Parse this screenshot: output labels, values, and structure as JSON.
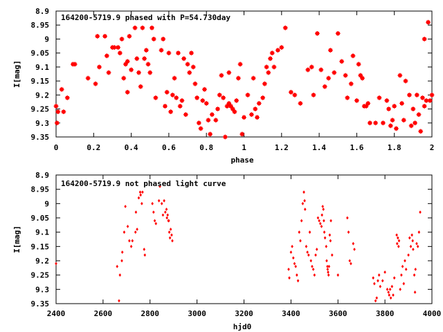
{
  "chart_data": [
    {
      "type": "scatter",
      "title": "164200-5719.9 phased with P=54.730day",
      "xlabel": "phase",
      "ylabel": "I[mag]",
      "xlim": [
        0,
        2
      ],
      "ylim": [
        9.35,
        8.9
      ],
      "y_inverted": true,
      "x_ticks": [
        0,
        0.2,
        0.4,
        0.6,
        0.8,
        1,
        1.2,
        1.4,
        1.6,
        1.8,
        2
      ],
      "x_tick_labels": [
        "0",
        "0.2",
        "0.4",
        "0.6",
        "0.8",
        "1",
        "1.2",
        "1.4",
        "1.6",
        "1.8",
        "2"
      ],
      "y_ticks": [
        8.9,
        8.95,
        9.0,
        9.05,
        9.1,
        9.15,
        9.2,
        9.25,
        9.3,
        9.35
      ],
      "y_tick_labels": [
        "8.9",
        "8.95",
        "9",
        "9.05",
        "9.1",
        "9.15",
        "9.2",
        "9.25",
        "9.3",
        "9.35"
      ],
      "marker_color": "#ff0000",
      "marker": "filled-star",
      "points": [
        [
          0.0,
          9.24
        ],
        [
          0.005,
          9.3
        ],
        [
          0.01,
          9.26
        ],
        [
          0.03,
          9.18
        ],
        [
          0.04,
          9.26
        ],
        [
          0.06,
          9.21
        ],
        [
          0.09,
          9.09
        ],
        [
          0.1,
          9.09
        ],
        [
          0.17,
          9.14
        ],
        [
          0.21,
          9.16
        ],
        [
          0.22,
          8.99
        ],
        [
          0.23,
          9.1
        ],
        [
          0.26,
          8.99
        ],
        [
          0.27,
          9.06
        ],
        [
          0.28,
          9.12
        ],
        [
          0.3,
          9.03
        ],
        [
          0.31,
          9.03
        ],
        [
          0.33,
          9.03
        ],
        [
          0.34,
          9.05
        ],
        [
          0.35,
          9.0
        ],
        [
          0.36,
          9.14
        ],
        [
          0.37,
          9.09
        ],
        [
          0.38,
          9.08
        ],
        [
          0.38,
          9.19
        ],
        [
          0.39,
          8.99
        ],
        [
          0.4,
          9.11
        ],
        [
          0.42,
          8.96
        ],
        [
          0.43,
          9.07
        ],
        [
          0.44,
          9.12
        ],
        [
          0.45,
          9.17
        ],
        [
          0.46,
          8.96
        ],
        [
          0.47,
          9.07
        ],
        [
          0.48,
          9.04
        ],
        [
          0.49,
          9.09
        ],
        [
          0.5,
          9.12
        ],
        [
          0.51,
          8.96
        ],
        [
          0.52,
          9.0
        ],
        [
          0.53,
          9.21
        ],
        [
          0.56,
          9.04
        ],
        [
          0.57,
          9.0
        ],
        [
          0.58,
          9.24
        ],
        [
          0.59,
          9.19
        ],
        [
          0.6,
          9.05
        ],
        [
          0.61,
          9.26
        ],
        [
          0.62,
          9.2
        ],
        [
          0.63,
          9.14
        ],
        [
          0.64,
          9.21
        ],
        [
          0.65,
          9.05
        ],
        [
          0.66,
          9.24
        ],
        [
          0.67,
          9.22
        ],
        [
          0.68,
          9.07
        ],
        [
          0.69,
          9.27
        ],
        [
          0.7,
          9.09
        ],
        [
          0.71,
          9.12
        ],
        [
          0.72,
          9.05
        ],
        [
          0.73,
          9.1
        ],
        [
          0.74,
          9.16
        ],
        [
          0.75,
          9.21
        ],
        [
          0.76,
          9.3
        ],
        [
          0.77,
          9.32
        ],
        [
          0.78,
          9.22
        ],
        [
          0.79,
          9.18
        ],
        [
          0.8,
          9.23
        ],
        [
          0.81,
          9.29
        ],
        [
          0.82,
          9.34
        ],
        [
          0.83,
          9.27
        ],
        [
          0.85,
          9.29
        ],
        [
          0.86,
          9.25
        ],
        [
          0.87,
          9.2
        ],
        [
          0.88,
          9.13
        ],
        [
          0.89,
          9.21
        ],
        [
          0.9,
          9.35
        ],
        [
          0.91,
          9.24
        ],
        [
          0.92,
          9.12
        ],
        [
          0.92,
          9.23
        ],
        [
          0.93,
          9.24
        ],
        [
          0.94,
          9.25
        ],
        [
          0.95,
          9.26
        ],
        [
          0.96,
          9.22
        ],
        [
          0.97,
          9.14
        ],
        [
          0.98,
          9.09
        ],
        [
          0.99,
          9.34
        ],
        [
          1.0,
          9.28
        ],
        [
          1.02,
          9.2
        ],
        [
          1.04,
          9.27
        ],
        [
          1.05,
          9.14
        ],
        [
          1.06,
          9.25
        ],
        [
          1.07,
          9.28
        ],
        [
          1.08,
          9.23
        ],
        [
          1.1,
          9.21
        ],
        [
          1.11,
          9.16
        ],
        [
          1.12,
          9.1
        ],
        [
          1.13,
          9.12
        ],
        [
          1.14,
          9.07
        ],
        [
          1.15,
          9.05
        ],
        [
          1.16,
          9.1
        ],
        [
          1.18,
          9.04
        ],
        [
          1.2,
          9.03
        ],
        [
          1.22,
          8.96
        ],
        [
          1.25,
          9.19
        ],
        [
          1.27,
          9.2
        ],
        [
          1.3,
          9.23
        ],
        [
          1.34,
          9.11
        ],
        [
          1.36,
          9.1
        ],
        [
          1.37,
          9.2
        ],
        [
          1.39,
          8.98
        ],
        [
          1.41,
          9.11
        ],
        [
          1.43,
          9.17
        ],
        [
          1.45,
          9.14
        ],
        [
          1.46,
          9.04
        ],
        [
          1.48,
          9.12
        ],
        [
          1.5,
          8.98
        ],
        [
          1.52,
          9.08
        ],
        [
          1.54,
          9.13
        ],
        [
          1.55,
          9.21
        ],
        [
          1.57,
          9.16
        ],
        [
          1.58,
          9.06
        ],
        [
          1.6,
          9.22
        ],
        [
          1.61,
          9.09
        ],
        [
          1.62,
          9.13
        ],
        [
          1.63,
          9.14
        ],
        [
          1.64,
          9.24
        ],
        [
          1.65,
          9.24
        ],
        [
          1.66,
          9.23
        ],
        [
          1.67,
          9.3
        ],
        [
          1.7,
          9.3
        ],
        [
          1.72,
          9.21
        ],
        [
          1.74,
          9.3
        ],
        [
          1.76,
          9.22
        ],
        [
          1.77,
          9.25
        ],
        [
          1.78,
          9.31
        ],
        [
          1.79,
          9.29
        ],
        [
          1.8,
          9.24
        ],
        [
          1.81,
          9.32
        ],
        [
          1.83,
          9.13
        ],
        [
          1.84,
          9.23
        ],
        [
          1.85,
          9.29
        ],
        [
          1.86,
          9.15
        ],
        [
          1.88,
          9.2
        ],
        [
          1.89,
          9.31
        ],
        [
          1.9,
          9.25
        ],
        [
          1.91,
          9.3
        ],
        [
          1.92,
          9.2
        ],
        [
          1.93,
          9.27
        ],
        [
          1.94,
          9.33
        ],
        [
          1.95,
          9.21
        ],
        [
          1.96,
          9.24
        ],
        [
          1.96,
          9.0
        ],
        [
          1.97,
          9.22
        ],
        [
          1.98,
          8.94
        ],
        [
          1.99,
          9.22
        ],
        [
          2.0,
          9.2
        ]
      ]
    },
    {
      "type": "scatter",
      "title": "164200-5719.9 not phased light curve",
      "xlabel": "hjd0",
      "ylabel": "I[mag]",
      "xlim": [
        2400,
        4000
      ],
      "ylim": [
        9.35,
        8.9
      ],
      "y_inverted": true,
      "x_ticks": [
        2400,
        2600,
        2800,
        3000,
        3200,
        3400,
        3600,
        3800,
        4000
      ],
      "x_tick_labels": [
        "2400",
        "2600",
        "2800",
        "3000",
        "3200",
        "3400",
        "3600",
        "3800",
        "4000"
      ],
      "y_ticks": [
        8.9,
        8.95,
        9.0,
        9.05,
        9.1,
        9.15,
        9.2,
        9.25,
        9.3,
        9.35
      ],
      "y_tick_labels": [
        "8.9",
        "8.95",
        "9",
        "9.05",
        "9.1",
        "9.15",
        "9.2",
        "9.25",
        "9.3",
        "9.35"
      ],
      "marker_color": "#ff0000",
      "marker": "filled-diamond",
      "points": [
        [
          2400,
          9.21
        ],
        [
          2660,
          9.22
        ],
        [
          2668,
          9.34
        ],
        [
          2672,
          9.25
        ],
        [
          2680,
          9.2
        ],
        [
          2682,
          9.17
        ],
        [
          2690,
          9.1
        ],
        [
          2695,
          9.01
        ],
        [
          2705,
          9.08
        ],
        [
          2712,
          9.13
        ],
        [
          2720,
          9.15
        ],
        [
          2725,
          9.13
        ],
        [
          2738,
          9.1
        ],
        [
          2740,
          9.03
        ],
        [
          2745,
          9.09
        ],
        [
          2752,
          8.98
        ],
        [
          2758,
          8.96
        ],
        [
          2760,
          8.97
        ],
        [
          2765,
          9.0
        ],
        [
          2768,
          8.96
        ],
        [
          2775,
          9.16
        ],
        [
          2778,
          9.18
        ],
        [
          2810,
          9.0
        ],
        [
          2815,
          9.03
        ],
        [
          2820,
          9.06
        ],
        [
          2825,
          9.07
        ],
        [
          2838,
          8.99
        ],
        [
          2842,
          8.94
        ],
        [
          2850,
          9.0
        ],
        [
          2855,
          9.04
        ],
        [
          2860,
          8.99
        ],
        [
          2865,
          9.03
        ],
        [
          2870,
          9.02
        ],
        [
          2872,
          9.05
        ],
        [
          2875,
          9.04
        ],
        [
          2878,
          9.06
        ],
        [
          2880,
          9.06
        ],
        [
          2882,
          9.1
        ],
        [
          2885,
          9.12
        ],
        [
          2888,
          9.09
        ],
        [
          2892,
          9.11
        ],
        [
          2895,
          9.13
        ],
        [
          3390,
          9.23
        ],
        [
          3393,
          9.26
        ],
        [
          3400,
          9.17
        ],
        [
          3405,
          9.15
        ],
        [
          3410,
          9.19
        ],
        [
          3415,
          9.21
        ],
        [
          3420,
          9.22
        ],
        [
          3425,
          9.25
        ],
        [
          3430,
          9.27
        ],
        [
          3435,
          9.1
        ],
        [
          3440,
          9.13
        ],
        [
          3445,
          9.06
        ],
        [
          3450,
          9.0
        ],
        [
          3455,
          8.96
        ],
        [
          3458,
          8.99
        ],
        [
          3460,
          9.02
        ],
        [
          3465,
          9.15
        ],
        [
          3470,
          9.17
        ],
        [
          3475,
          9.18
        ],
        [
          3480,
          9.1
        ],
        [
          3485,
          9.2
        ],
        [
          3490,
          9.22
        ],
        [
          3495,
          9.23
        ],
        [
          3500,
          9.25
        ],
        [
          3505,
          9.18
        ],
        [
          3510,
          9.16
        ],
        [
          3515,
          9.05
        ],
        [
          3520,
          9.06
        ],
        [
          3525,
          9.07
        ],
        [
          3530,
          9.08
        ],
        [
          3532,
          9.04
        ],
        [
          3535,
          9.01
        ],
        [
          3538,
          9.02
        ],
        [
          3540,
          9.06
        ],
        [
          3542,
          9.1
        ],
        [
          3545,
          9.12
        ],
        [
          3550,
          9.15
        ],
        [
          3552,
          9.2
        ],
        [
          3555,
          9.22
        ],
        [
          3556,
          9.23
        ],
        [
          3558,
          9.24
        ],
        [
          3560,
          9.25
        ],
        [
          3562,
          9.22
        ],
        [
          3565,
          9.11
        ],
        [
          3568,
          9.13
        ],
        [
          3570,
          9.06
        ],
        [
          3575,
          9.18
        ],
        [
          3600,
          9.25
        ],
        [
          3640,
          9.05
        ],
        [
          3645,
          9.1
        ],
        [
          3650,
          9.2
        ],
        [
          3655,
          9.21
        ],
        [
          3665,
          9.14
        ],
        [
          3670,
          9.16
        ],
        [
          3750,
          9.26
        ],
        [
          3755,
          9.28
        ],
        [
          3760,
          9.34
        ],
        [
          3765,
          9.33
        ],
        [
          3770,
          9.27
        ],
        [
          3775,
          9.25
        ],
        [
          3780,
          9.29
        ],
        [
          3790,
          9.27
        ],
        [
          3800,
          9.24
        ],
        [
          3810,
          9.3
        ],
        [
          3815,
          9.31
        ],
        [
          3818,
          9.32
        ],
        [
          3822,
          9.3
        ],
        [
          3825,
          9.33
        ],
        [
          3830,
          9.29
        ],
        [
          3835,
          9.32
        ],
        [
          3840,
          9.26
        ],
        [
          3850,
          9.11
        ],
        [
          3852,
          9.14
        ],
        [
          3855,
          9.12
        ],
        [
          3858,
          9.15
        ],
        [
          3860,
          9.13
        ],
        [
          3865,
          9.3
        ],
        [
          3870,
          9.25
        ],
        [
          3875,
          9.22
        ],
        [
          3880,
          9.28
        ],
        [
          3885,
          9.2
        ],
        [
          3890,
          9.23
        ],
        [
          3900,
          9.18
        ],
        [
          3905,
          9.12
        ],
        [
          3910,
          9.15
        ],
        [
          3915,
          9.11
        ],
        [
          3918,
          9.13
        ],
        [
          3920,
          9.16
        ],
        [
          3925,
          9.25
        ],
        [
          3928,
          9.31
        ],
        [
          3930,
          9.23
        ],
        [
          3935,
          9.14
        ],
        [
          3940,
          9.15
        ],
        [
          3945,
          9.1
        ],
        [
          3950,
          9.03
        ]
      ]
    }
  ]
}
